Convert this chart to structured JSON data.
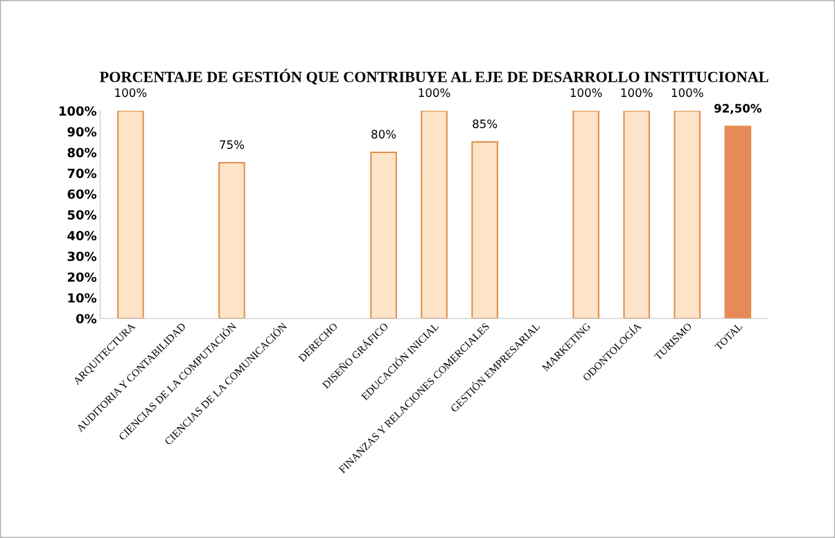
{
  "chart_data": {
    "type": "bar",
    "title": "PORCENTAJE DE GESTIÓN QUE CONTRIBUYE AL EJE DE DESARROLLO INSTITUCIONAL",
    "categories": [
      "ARQUITECTURA",
      "AUDITORIA Y CONTABILIDAD",
      "CIENCIAS DE LA COMPUTACIÓN",
      "CIENCIAS DE LA COMUNICACIÓN",
      "DERECHO",
      "DISEÑO GRÁFICO",
      "EDUCACIÓN INICIAL",
      "FINANZAS Y RELACIONES COMERCIALES",
      "GESTIÓN EMPRESARIAL",
      "MARKETING",
      "ODONTOLOGÍA",
      "TURISMO",
      "TOTAL"
    ],
    "values": [
      100,
      null,
      75,
      null,
      null,
      80,
      100,
      85,
      null,
      100,
      100,
      100,
      92.5
    ],
    "value_labels": [
      "100%",
      null,
      "75%",
      null,
      null,
      "80%",
      "100%",
      "85%",
      null,
      "100%",
      "100%",
      "100%",
      "92,50%"
    ],
    "colors": [
      "#fde3c8",
      "#fde3c8",
      "#fde3c8",
      "#fde3c8",
      "#fde3c8",
      "#fde3c8",
      "#fde3c8",
      "#fde3c8",
      "#fde3c8",
      "#fde3c8",
      "#fde3c8",
      "#fde3c8",
      "#e8895a"
    ],
    "ylim": [
      0,
      100
    ],
    "yticks": [
      {
        "value": 0,
        "label": "0%"
      },
      {
        "value": 10,
        "label": "10%"
      },
      {
        "value": 20,
        "label": "20%"
      },
      {
        "value": 30,
        "label": "30%"
      },
      {
        "value": 40,
        "label": "40%"
      },
      {
        "value": 50,
        "label": "50%"
      },
      {
        "value": 60,
        "label": "60%"
      },
      {
        "value": 70,
        "label": "70%"
      },
      {
        "value": 80,
        "label": "80%"
      },
      {
        "value": 90,
        "label": "90%"
      },
      {
        "value": 100,
        "label": "100%"
      }
    ],
    "grid": false,
    "legend": false
  }
}
